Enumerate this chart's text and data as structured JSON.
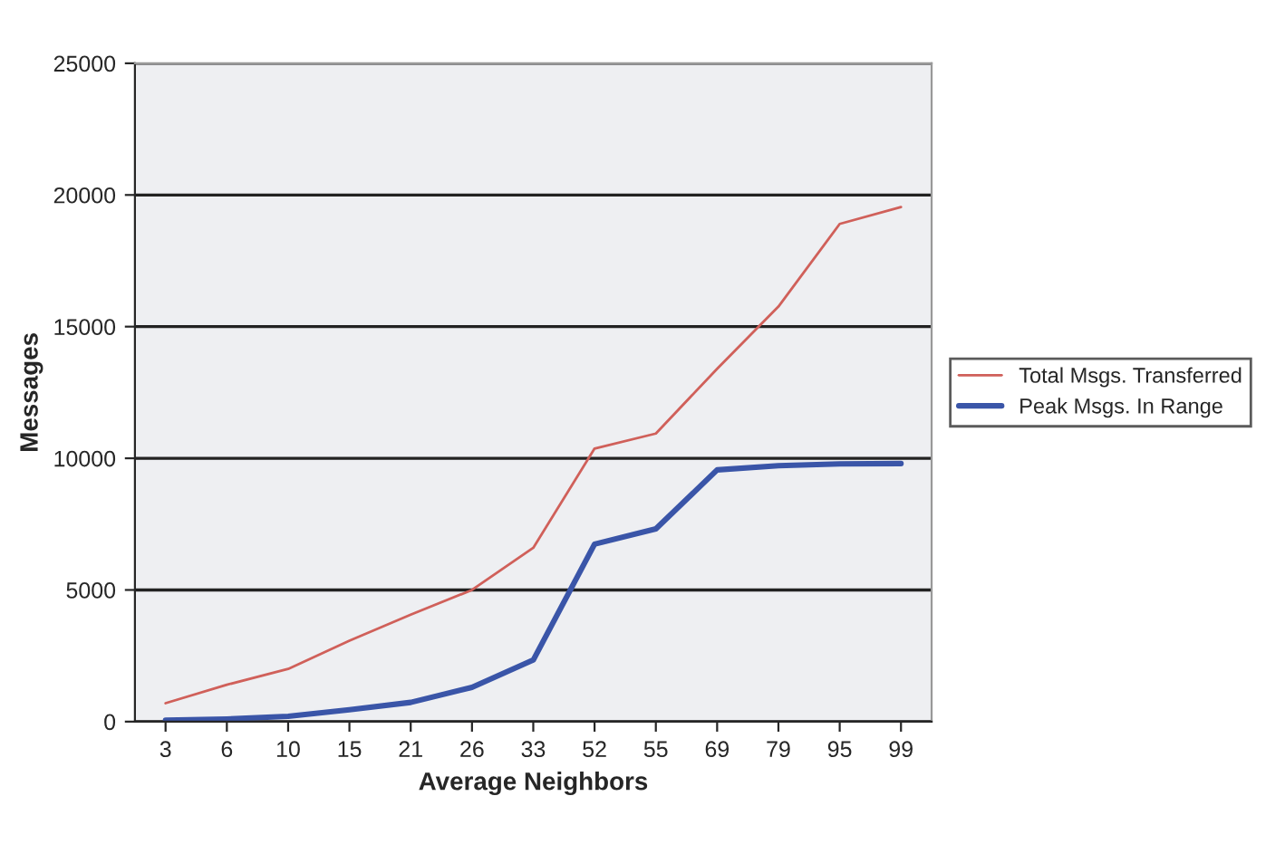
{
  "chart_data": {
    "type": "line",
    "xlabel": "Average Neighbors",
    "ylabel": "Messages",
    "categories": [
      "3",
      "6",
      "10",
      "15",
      "21",
      "26",
      "33",
      "52",
      "55",
      "69",
      "79",
      "95",
      "99"
    ],
    "series": [
      {
        "name": "Total Msgs. Transferred",
        "color": "#d0605a",
        "values": [
          700,
          1400,
          2000,
          3070,
          4060,
          5000,
          6600,
          10370,
          10940,
          13400,
          15760,
          18900,
          19540
        ]
      },
      {
        "name": "Peak Msgs. In Range",
        "color": "#3a55a8",
        "values": [
          50,
          100,
          200,
          450,
          730,
          1300,
          2340,
          6740,
          7320,
          9560,
          9720,
          9790,
          9800
        ]
      }
    ],
    "ylim": [
      0,
      25000
    ],
    "yticks": [
      0,
      5000,
      10000,
      15000,
      20000,
      25000
    ],
    "grid": "y",
    "legend": "right",
    "marker": "none",
    "line_style": "solid"
  }
}
